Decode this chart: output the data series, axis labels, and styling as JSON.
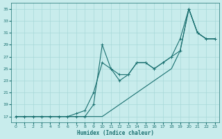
{
  "xlabel": "Humidex (Indice chaleur)",
  "bg_color": "#c8ecec",
  "grid_color": "#a8d8d8",
  "line_color": "#1a7070",
  "xlim": [
    -0.5,
    23.5
  ],
  "ylim": [
    16,
    36
  ],
  "yticks": [
    17,
    19,
    21,
    23,
    25,
    27,
    29,
    31,
    33,
    35
  ],
  "xticks": [
    0,
    1,
    2,
    3,
    4,
    5,
    6,
    7,
    8,
    9,
    10,
    11,
    12,
    13,
    14,
    15,
    16,
    17,
    18,
    19,
    20,
    21,
    22,
    23
  ],
  "line1_x": [
    0,
    1,
    2,
    3,
    4,
    5,
    6,
    7,
    8,
    9,
    10,
    11,
    12,
    13,
    14,
    15,
    16,
    17,
    18,
    19,
    20,
    21,
    22,
    23
  ],
  "line1_y": [
    17,
    17,
    17,
    17,
    17,
    17,
    17,
    17,
    17,
    19,
    29,
    25,
    23,
    24,
    26,
    26,
    25,
    26,
    27,
    28,
    35,
    31,
    30,
    30
  ],
  "line2_x": [
    0,
    1,
    2,
    3,
    4,
    5,
    6,
    7,
    8,
    9,
    10,
    11,
    12,
    13,
    14,
    15,
    16,
    17,
    18,
    19,
    20,
    21,
    22,
    23
  ],
  "line2_y": [
    17,
    17,
    17,
    17,
    17,
    17,
    17,
    17.5,
    18,
    21,
    26,
    25,
    24,
    24,
    26,
    26,
    25,
    26,
    27,
    30,
    35,
    31,
    30,
    30
  ],
  "line3_x": [
    0,
    1,
    2,
    3,
    4,
    5,
    6,
    7,
    8,
    9,
    10,
    11,
    12,
    13,
    14,
    15,
    16,
    17,
    18,
    19,
    20,
    21,
    22,
    23
  ],
  "line3_y": [
    17,
    17,
    17,
    17,
    17,
    17,
    17,
    17,
    17,
    17,
    17,
    18,
    19,
    20,
    21,
    22,
    23,
    24,
    25,
    28,
    35,
    31,
    30,
    30
  ]
}
